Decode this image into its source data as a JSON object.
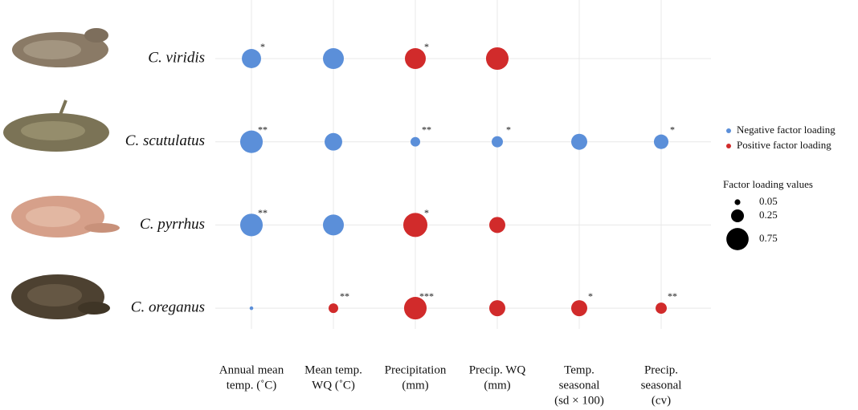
{
  "chart_data": {
    "type": "bubble",
    "categories": [
      [
        "Annual mean",
        "temp. (˚C)"
      ],
      [
        "Mean temp.",
        "WQ (˚C)"
      ],
      [
        "Precipitation",
        "(mm)"
      ],
      [
        "Precip. WQ",
        "(mm)"
      ],
      [
        "Temp.",
        "seasonal",
        "(sd × 100)"
      ],
      [
        "Precip.",
        "seasonal",
        "(cv)"
      ]
    ],
    "series": [
      {
        "name": "C. viridis",
        "values": [
          -0.56,
          -0.66,
          0.66,
          0.77,
          null,
          null
        ],
        "significance": [
          "*",
          null,
          "*",
          null,
          null,
          null
        ]
      },
      {
        "name": "C. scutulatus",
        "values": [
          -0.77,
          -0.47,
          -0.14,
          -0.19,
          -0.39,
          -0.32
        ],
        "significance": [
          "**",
          null,
          "**",
          "*",
          null,
          "*"
        ]
      },
      {
        "name": "C. pyrrhus",
        "values": [
          -0.77,
          -0.66,
          0.88,
          0.39,
          null,
          null
        ],
        "significance": [
          "**",
          null,
          "*",
          null,
          null,
          null
        ]
      },
      {
        "name": "C. oreganus",
        "values": [
          -0.02,
          0.14,
          0.77,
          0.39,
          0.39,
          0.19
        ],
        "significance": [
          null,
          "**",
          "***",
          null,
          "*",
          "**"
        ]
      }
    ],
    "legend": {
      "colors": [
        {
          "label": "Negative factor loading",
          "color": "#5b8fd9"
        },
        {
          "label": "Positive factor loading",
          "color": "#d12b2b"
        }
      ],
      "size_title": "Factor loading values",
      "sizes": [
        0.05,
        0.25,
        0.75
      ]
    },
    "grid": true
  }
}
